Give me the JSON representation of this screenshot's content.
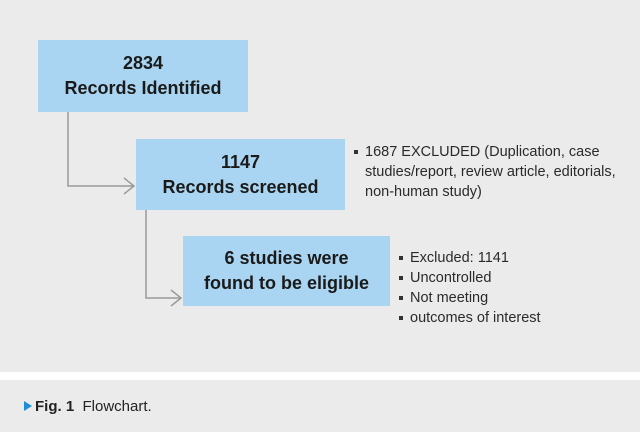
{
  "boxes": [
    {
      "lines": [
        "2834",
        "Records Identified"
      ]
    },
    {
      "lines": [
        "1147",
        "Records screened"
      ]
    },
    {
      "lines": [
        "6 studies were",
        "found to be eligible"
      ]
    }
  ],
  "notes": [
    {
      "items": [
        "1687 EXCLUDED (Duplication, case studies/report, review article, editorials, non-human study)"
      ]
    },
    {
      "items": [
        "Excluded: 1141",
        "Uncontrolled",
        "Not meeting",
        "outcomes of interest"
      ]
    }
  ],
  "caption": {
    "label": "Fig. 1",
    "text": "Flowchart."
  }
}
